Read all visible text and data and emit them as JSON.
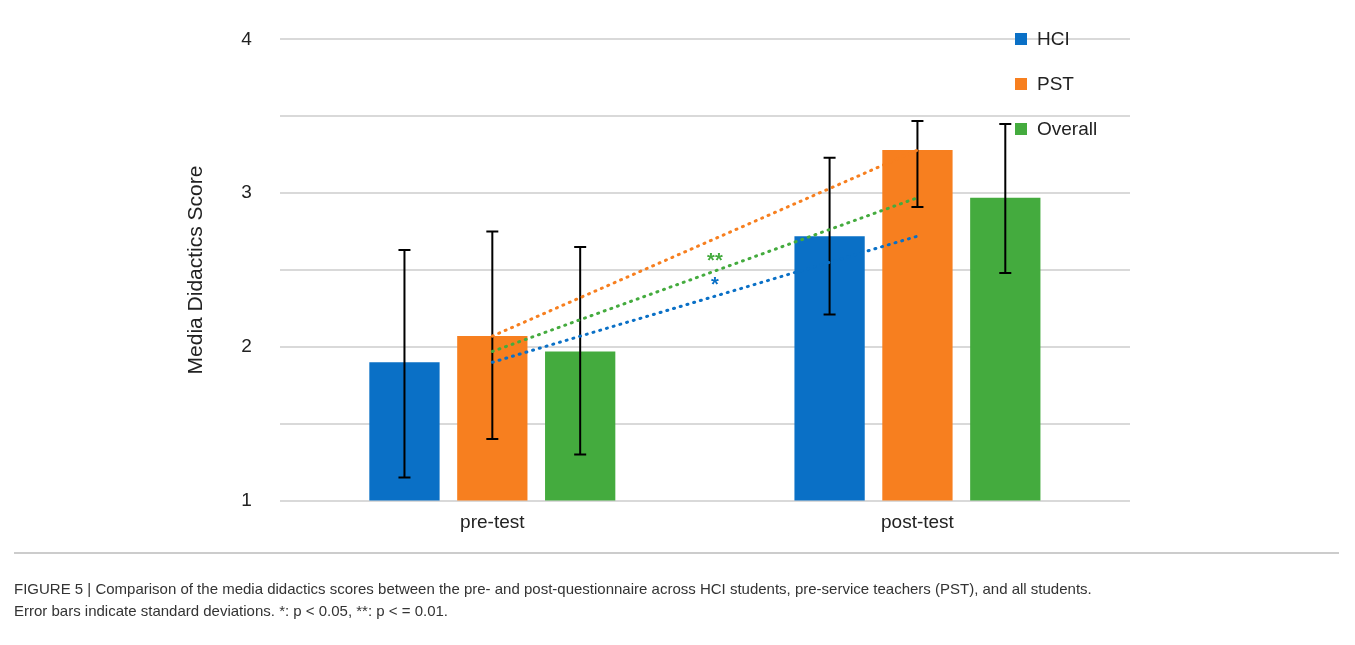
{
  "chart_data": {
    "type": "bar",
    "ylabel": "Media Didactics Score",
    "categories": [
      "pre-test",
      "post-test"
    ],
    "series": [
      {
        "name": "HCI",
        "color": "#0a70c6",
        "values": [
          1.9,
          2.72
        ],
        "errors": [
          [
            1.15,
            2.63
          ],
          [
            2.21,
            3.23
          ]
        ]
      },
      {
        "name": "PST",
        "color": "#f77f1f",
        "values": [
          2.07,
          3.28
        ],
        "errors": [
          [
            1.4,
            2.75
          ],
          [
            2.91,
            3.47
          ]
        ]
      },
      {
        "name": "Overall",
        "color": "#44ab3e",
        "values": [
          1.97,
          2.97
        ],
        "errors": [
          [
            1.3,
            2.65
          ],
          [
            2.48,
            3.45
          ]
        ]
      },
      {
        "type": "line",
        "color": "#0a70c6",
        "x": [
          "pre-test",
          "post-test"
        ],
        "values": [
          1.9,
          2.72
        ],
        "line_style": "dotted",
        "marker": "none"
      },
      {
        "type": "line",
        "color": "#f77f1f",
        "x": [
          "pre-test",
          "post-test"
        ],
        "values": [
          2.07,
          3.28
        ],
        "line_style": "dotted",
        "marker": "none"
      },
      {
        "type": "line",
        "color": "#44ab3e",
        "x": [
          "pre-test",
          "post-test"
        ],
        "values": [
          1.97,
          2.97
        ],
        "line_style": "dotted",
        "marker": "none"
      }
    ],
    "ylim": [
      1,
      4
    ],
    "yticks": [
      1,
      {
        "value": 1.5,
        "label": null
      },
      2,
      {
        "value": 2.5,
        "label": null
      },
      3,
      {
        "value": 3.5,
        "label": null
      },
      4
    ],
    "grid": "y",
    "legend": "top right",
    "annotations": [
      "**",
      "*",
      "FIGURE 5 | Comparison of the media didactics scores between the pre- and post-questionnaire across HCI students, pre-service teachers (PST), and all students.",
      "Error bars indicate standard deviations. *: p < 0.05, **: p < = 0.01."
    ]
  }
}
